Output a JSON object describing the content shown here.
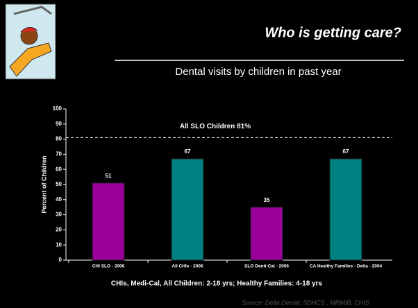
{
  "chart_data": {
    "type": "bar",
    "title": "Who is getting care?",
    "subtitle": "Dental visits by children in past year",
    "categories": [
      "CHI SLO - 2006",
      "All CHIs - 2006",
      "SLO Denti-Cal - 2006",
      "CA Healthy Families - Delta - 2004"
    ],
    "values": [
      51,
      67,
      35,
      67
    ],
    "colors": [
      "#990099",
      "#008080",
      "#990099",
      "#008080"
    ],
    "ylim": [
      0,
      100
    ],
    "yticks": [
      0,
      10,
      20,
      30,
      40,
      50,
      60,
      70,
      80,
      90,
      100
    ],
    "y_label": "Percent of Children",
    "x_label": "CHIs, Medi-Cal, All Children: 2-18 yrs; Healthy Families: 4-18 yrs",
    "reference_line": {
      "value": 81,
      "label": "All SLO Children 81%"
    },
    "source": "Source: Delta Dental, SDHCS , MRMIB, CHIS"
  }
}
